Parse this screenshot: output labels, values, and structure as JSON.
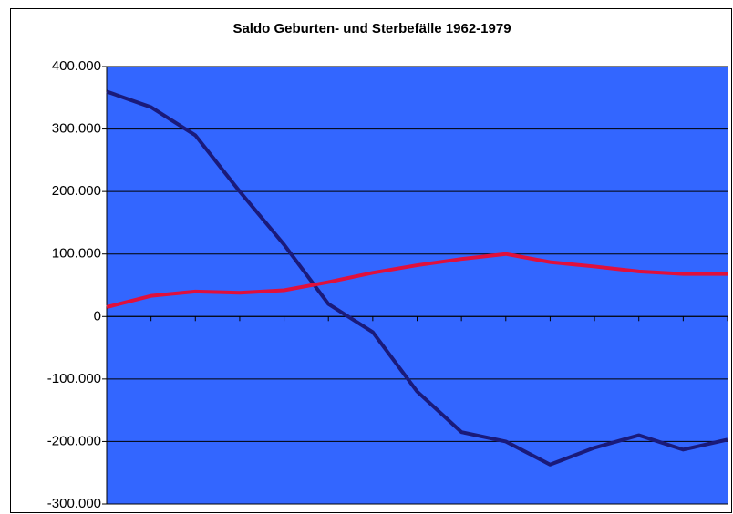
{
  "chart_data": {
    "type": "line",
    "title": "Saldo Geburten- und Sterbefälle 1962-1979",
    "categories": [
      null,
      null,
      null,
      null,
      null,
      null,
      null,
      null,
      null,
      null,
      null,
      null,
      null,
      null,
      null
    ],
    "series": [
      {
        "color": "#1a1a7a",
        "values": [
          360000,
          335000,
          290000,
          200000,
          115000,
          20000,
          -25000,
          -120000,
          -185000,
          -200000,
          -237000,
          -210000,
          -190000,
          -213000,
          -197000
        ]
      },
      {
        "color": "#e0103c",
        "values": [
          15000,
          33000,
          40000,
          38000,
          42000,
          55000,
          70000,
          82000,
          92000,
          100000,
          87000,
          80000,
          72000,
          68000,
          68000
        ]
      }
    ],
    "ylim": [
      -300000,
      400000
    ],
    "yticks": [
      {
        "value": 400000,
        "label": "400.000"
      },
      {
        "value": 300000,
        "label": "300.000"
      },
      {
        "value": 200000,
        "label": "200.000"
      },
      {
        "value": 100000,
        "label": "100.000"
      },
      0,
      {
        "value": -100000,
        "label": "-100.000"
      },
      {
        "value": -200000,
        "label": "-200.000"
      },
      {
        "value": -300000,
        "label": "-300.000"
      }
    ],
    "grid": true,
    "background": "#3366ff"
  }
}
